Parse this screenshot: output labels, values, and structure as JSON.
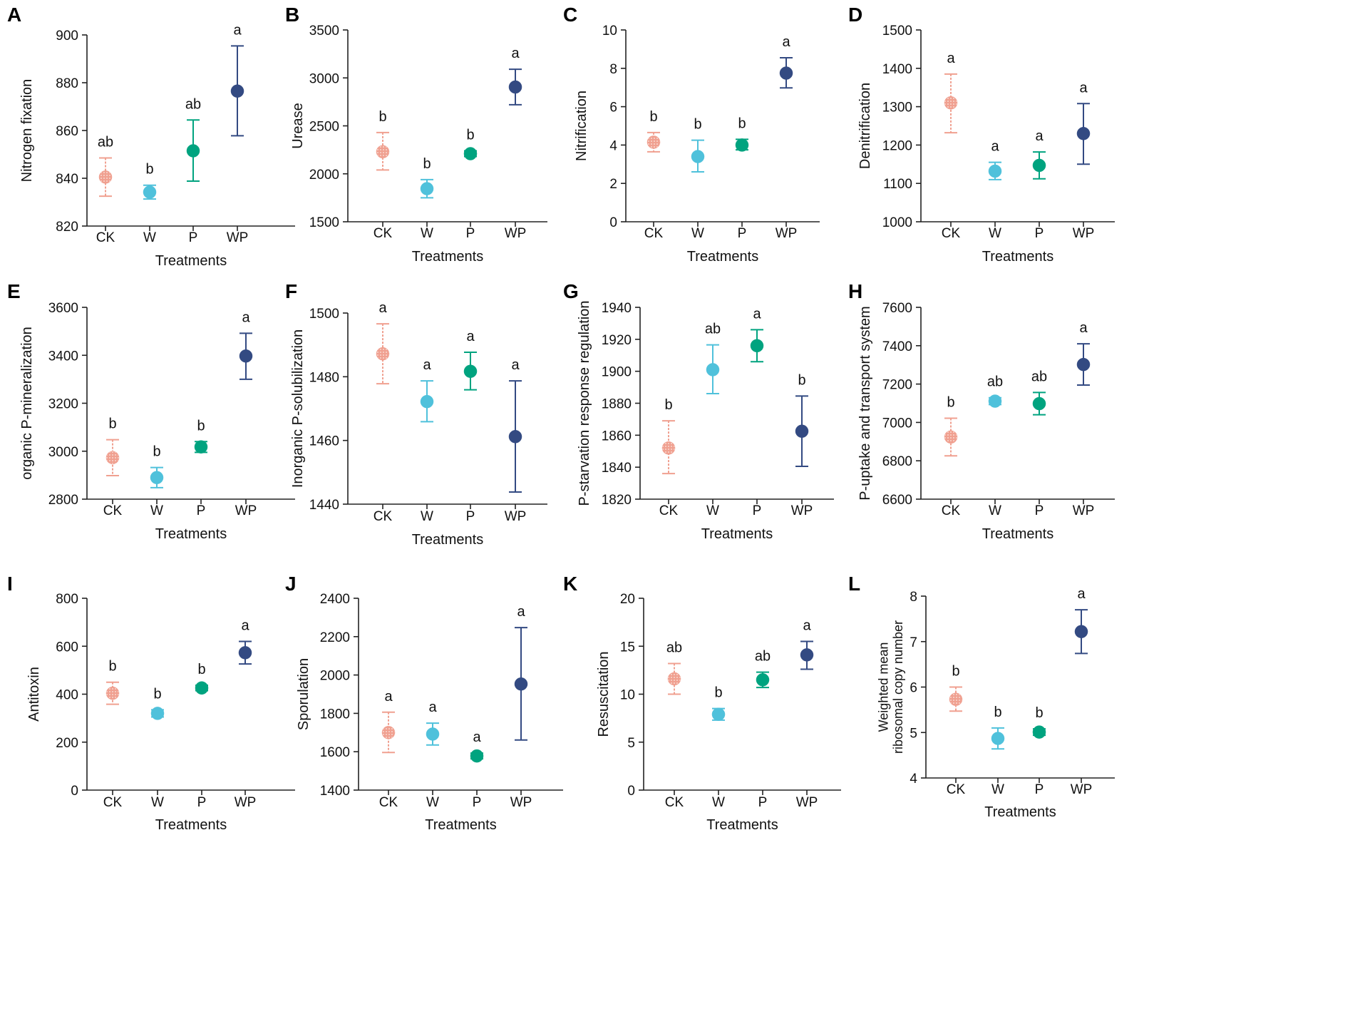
{
  "colors": {
    "CK": "#f0a090",
    "W": "#4fc1db",
    "P": "#00a37f",
    "WP": "#334a82"
  },
  "chart_data": [
    {
      "type": "scatter",
      "panel": "A",
      "ylabel": "Nitrogen fixation",
      "xlabel": "Treatments",
      "categories": [
        "CK",
        "W",
        "P",
        "WP"
      ],
      "ylim": [
        820,
        900
      ],
      "yticks": [
        820,
        840,
        860,
        880,
        900
      ],
      "ytick_labels": [
        "820",
        "840",
        "860",
        "880",
        "900"
      ],
      "means": [
        840.5,
        834.2,
        851.5,
        876.5
      ],
      "err_low": [
        832.5,
        831.3,
        838.8,
        857.8
      ],
      "err_high": [
        848.5,
        837.1,
        864.4,
        895.4
      ],
      "letters": [
        "ab",
        "b",
        "ab",
        "a"
      ]
    },
    {
      "type": "scatter",
      "panel": "B",
      "ylabel": "Urease",
      "xlabel": "Treatments",
      "categories": [
        "CK",
        "W",
        "P",
        "WP"
      ],
      "ylim": [
        1500,
        3500
      ],
      "yticks": [
        1500,
        2000,
        2500,
        3000,
        3500
      ],
      "ytick_labels": [
        "1500",
        "2000",
        "2500",
        "3000",
        "3500"
      ],
      "means": [
        2230,
        1845,
        2210,
        2905
      ],
      "err_low": [
        2040,
        1750,
        2180,
        2720
      ],
      "err_high": [
        2430,
        1940,
        2240,
        3090
      ],
      "letters": [
        "b",
        "b",
        "b",
        "a"
      ]
    },
    {
      "type": "scatter",
      "panel": "C",
      "ylabel": "Nitrification",
      "xlabel": "Treatments",
      "categories": [
        "CK",
        "W",
        "P",
        "WP"
      ],
      "ylim": [
        0,
        10
      ],
      "yticks": [
        0,
        2,
        4,
        6,
        8,
        10
      ],
      "ytick_labels": [
        "0",
        "2",
        "4",
        "6",
        "8",
        "10"
      ],
      "means": [
        4.15,
        3.4,
        4.0,
        7.75
      ],
      "err_low": [
        3.65,
        2.6,
        3.75,
        6.98
      ],
      "err_high": [
        4.65,
        4.25,
        4.3,
        8.55
      ],
      "letters": [
        "b",
        "b",
        "b",
        "a"
      ]
    },
    {
      "type": "scatter",
      "panel": "D",
      "ylabel": "Denitrification",
      "xlabel": "Treatments",
      "categories": [
        "CK",
        "W",
        "P",
        "WP"
      ],
      "ylim": [
        1000,
        1500
      ],
      "yticks": [
        1000,
        1100,
        1200,
        1300,
        1400,
        1500
      ],
      "ytick_labels": [
        "1000",
        "1100",
        "1200",
        "1300",
        "1400",
        "1500"
      ],
      "means": [
        1310,
        1132,
        1147,
        1230
      ],
      "err_low": [
        1232,
        1110,
        1112,
        1150
      ],
      "err_high": [
        1385,
        1155,
        1182,
        1308
      ],
      "letters": [
        "a",
        "a",
        "a",
        "a"
      ]
    },
    {
      "type": "scatter",
      "panel": "E",
      "ylabel": "organic P-mineralization",
      "xlabel": "Treatments",
      "categories": [
        "CK",
        "W",
        "P",
        "WP"
      ],
      "ylim": [
        2800,
        3600
      ],
      "yticks": [
        2800,
        3000,
        3200,
        3400,
        3600
      ],
      "ytick_labels": [
        "2800",
        "3000",
        "3200",
        "3400",
        "3600"
      ],
      "means": [
        2973,
        2890,
        3018,
        3397
      ],
      "err_low": [
        2898,
        2848,
        2995,
        3300
      ],
      "err_high": [
        3048,
        2932,
        3040,
        3492
      ],
      "letters": [
        "b",
        "b",
        "b",
        "a"
      ]
    },
    {
      "type": "scatter",
      "panel": "F",
      "ylabel": "Inorganic P-solubilization",
      "xlabel": "Treatments",
      "categories": [
        "CK",
        "W",
        "P",
        "WP"
      ],
      "ylim": [
        1440,
        1500
      ],
      "yticks": [
        1440,
        1460,
        1480,
        1500
      ],
      "ytick_labels": [
        "1440",
        "1460",
        "1480",
        "1500"
      ],
      "means": [
        1487.2,
        1472.2,
        1481.7,
        1461.2
      ],
      "err_low": [
        1477.8,
        1465.9,
        1475.9,
        1443.8
      ],
      "err_high": [
        1496.6,
        1478.7,
        1487.7,
        1478.7
      ],
      "letters": [
        "a",
        "a",
        "a",
        "a"
      ]
    },
    {
      "type": "scatter",
      "panel": "G",
      "ylabel": "P-starvation response regulation",
      "xlabel": "Treatments",
      "categories": [
        "CK",
        "W",
        "P",
        "WP"
      ],
      "ylim": [
        1820,
        1940
      ],
      "yticks": [
        1820,
        1840,
        1860,
        1880,
        1900,
        1920,
        1940
      ],
      "ytick_labels": [
        "1820",
        "1840",
        "1860",
        "1880",
        "1900",
        "1920",
        "1940"
      ],
      "means": [
        1852,
        1901,
        1916,
        1862.5
      ],
      "err_low": [
        1836,
        1886,
        1906,
        1840.5
      ],
      "err_high": [
        1869,
        1916.5,
        1926,
        1884.5
      ],
      "letters": [
        "b",
        "ab",
        "a",
        "b"
      ]
    },
    {
      "type": "scatter",
      "panel": "H",
      "ylabel": "P-uptake and transport system",
      "xlabel": "Treatments",
      "categories": [
        "CK",
        "W",
        "P",
        "WP"
      ],
      "ylim": [
        6600,
        7600
      ],
      "yticks": [
        6600,
        6800,
        7000,
        7200,
        7400,
        7600
      ],
      "ytick_labels": [
        "6600",
        "6800",
        "7000",
        "7200",
        "7400",
        "7600"
      ],
      "means": [
        6924,
        7111,
        7098,
        7302
      ],
      "err_low": [
        6826,
        7093,
        7040,
        7195
      ],
      "err_high": [
        7022,
        7129,
        7156,
        7410
      ],
      "letters": [
        "b",
        "ab",
        "ab",
        "a"
      ]
    },
    {
      "type": "scatter",
      "panel": "I",
      "ylabel": "Antitoxin",
      "xlabel": "Treatments",
      "categories": [
        "CK",
        "W",
        "P",
        "WP"
      ],
      "ylim": [
        0,
        800
      ],
      "yticks": [
        0,
        200,
        400,
        600,
        800
      ],
      "ytick_labels": [
        "0",
        "200",
        "400",
        "600",
        "800"
      ],
      "means": [
        404,
        320,
        426,
        573
      ],
      "err_low": [
        358,
        305,
        415,
        526
      ],
      "err_high": [
        450,
        335,
        437,
        620
      ],
      "letters": [
        "b",
        "b",
        "b",
        "a"
      ]
    },
    {
      "type": "scatter",
      "panel": "J",
      "ylabel": "Sporulation",
      "xlabel": "Treatments",
      "categories": [
        "CK",
        "W",
        "P",
        "WP"
      ],
      "ylim": [
        1400,
        2400
      ],
      "yticks": [
        1400,
        1600,
        1800,
        2000,
        2200,
        2400
      ],
      "ytick_labels": [
        "1400",
        "1600",
        "1800",
        "2000",
        "2200",
        "2400"
      ],
      "means": [
        1700,
        1692,
        1578,
        1953
      ],
      "err_low": [
        1596,
        1635,
        1563,
        1661
      ],
      "err_high": [
        1806,
        1749,
        1593,
        2247
      ],
      "letters": [
        "a",
        "a",
        "a",
        "a"
      ]
    },
    {
      "type": "scatter",
      "panel": "K",
      "ylabel": "Resuscitation",
      "xlabel": "Treatments",
      "categories": [
        "CK",
        "W",
        "P",
        "WP"
      ],
      "ylim": [
        0,
        20
      ],
      "yticks": [
        0,
        5,
        10,
        15,
        20
      ],
      "ytick_labels": [
        "0",
        "5",
        "10",
        "15",
        "20"
      ],
      "means": [
        11.6,
        7.9,
        11.5,
        14.1
      ],
      "err_low": [
        10.0,
        7.3,
        10.7,
        12.6
      ],
      "err_high": [
        13.2,
        8.5,
        12.3,
        15.5
      ],
      "letters": [
        "ab",
        "b",
        "ab",
        "a"
      ]
    },
    {
      "type": "scatter",
      "panel": "L",
      "ylabel": "Weighted mean ribosomal copy number",
      "ylabel_lines": [
        "Weighted mean",
        "ribosomal copy number"
      ],
      "xlabel": "Treatments",
      "categories": [
        "CK",
        "W",
        "P",
        "WP"
      ],
      "ylim": [
        4,
        8
      ],
      "yticks": [
        4,
        5,
        6,
        7,
        8
      ],
      "ytick_labels": [
        "4",
        "5",
        "6",
        "7",
        "8"
      ],
      "means": [
        5.73,
        4.87,
        5.01,
        7.22
      ],
      "err_low": [
        5.47,
        4.64,
        4.94,
        6.74
      ],
      "err_high": [
        6.0,
        5.1,
        5.08,
        7.7
      ],
      "letters": [
        "b",
        "b",
        "b",
        "a"
      ]
    }
  ]
}
